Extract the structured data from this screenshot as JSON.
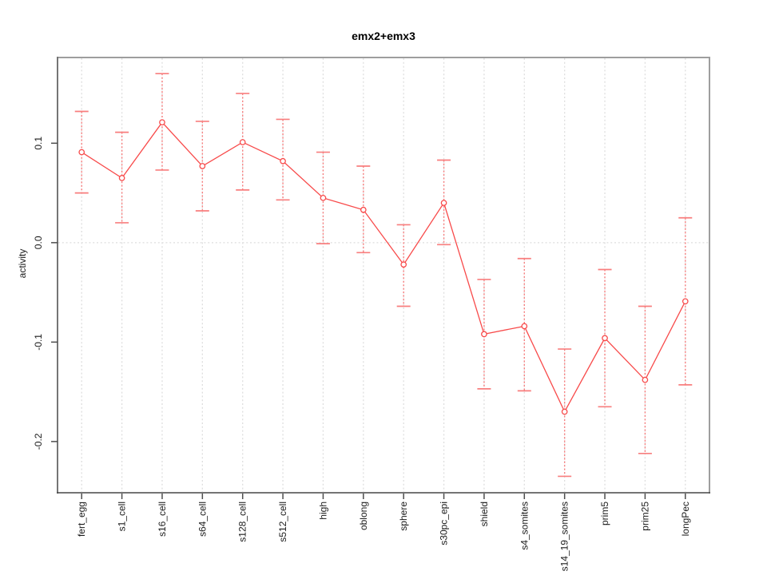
{
  "chart_data": {
    "type": "line",
    "title": "emx2+emx3",
    "xlabel": "",
    "ylabel": "activity",
    "legend_position": "none",
    "categories": [
      "fert_egg",
      "s1_cell",
      "s16_cell",
      "s64_cell",
      "s128_cell",
      "s512_cell",
      "high",
      "oblong",
      "sphere",
      "s30pc_epi",
      "shield",
      "s4_somites",
      "s14_19_somites",
      "prim5",
      "prim25",
      "longPec"
    ],
    "series": [
      {
        "name": "emx2+emx3 activity",
        "marker": "open-circle",
        "values": [
          0.091,
          0.065,
          0.121,
          0.077,
          0.101,
          0.082,
          0.045,
          0.033,
          -0.022,
          0.04,
          -0.092,
          -0.084,
          -0.17,
          -0.096,
          -0.138,
          -0.059
        ],
        "ci_low": [
          0.05,
          0.02,
          0.073,
          0.032,
          0.053,
          0.043,
          -0.001,
          -0.01,
          -0.064,
          -0.002,
          -0.147,
          -0.149,
          -0.235,
          -0.165,
          -0.212,
          -0.143
        ],
        "ci_high": [
          0.132,
          0.111,
          0.17,
          0.122,
          0.15,
          0.124,
          0.091,
          0.077,
          0.018,
          0.083,
          -0.037,
          -0.016,
          -0.107,
          -0.027,
          -0.064,
          0.025
        ]
      }
    ],
    "yticks": [
      0.1,
      0.0,
      -0.1,
      -0.2
    ],
    "ylim": [
      -0.2515,
      0.1862
    ],
    "grid": {
      "vertical_lines": "dotted",
      "horizontal_lines": "zero-only",
      "zero_line": "dotted"
    },
    "colors": {
      "line": "#f84a4a",
      "point_fill": "#ffffff",
      "error_bar": "#f87e7e",
      "grid": "#dedede",
      "frame_light": "#9e9e9e",
      "frame_left": "#757575",
      "frame_bottom": "#474747",
      "tick": "#4d4d4d",
      "text": "#1a1a1a",
      "background": "#ffffff"
    }
  }
}
